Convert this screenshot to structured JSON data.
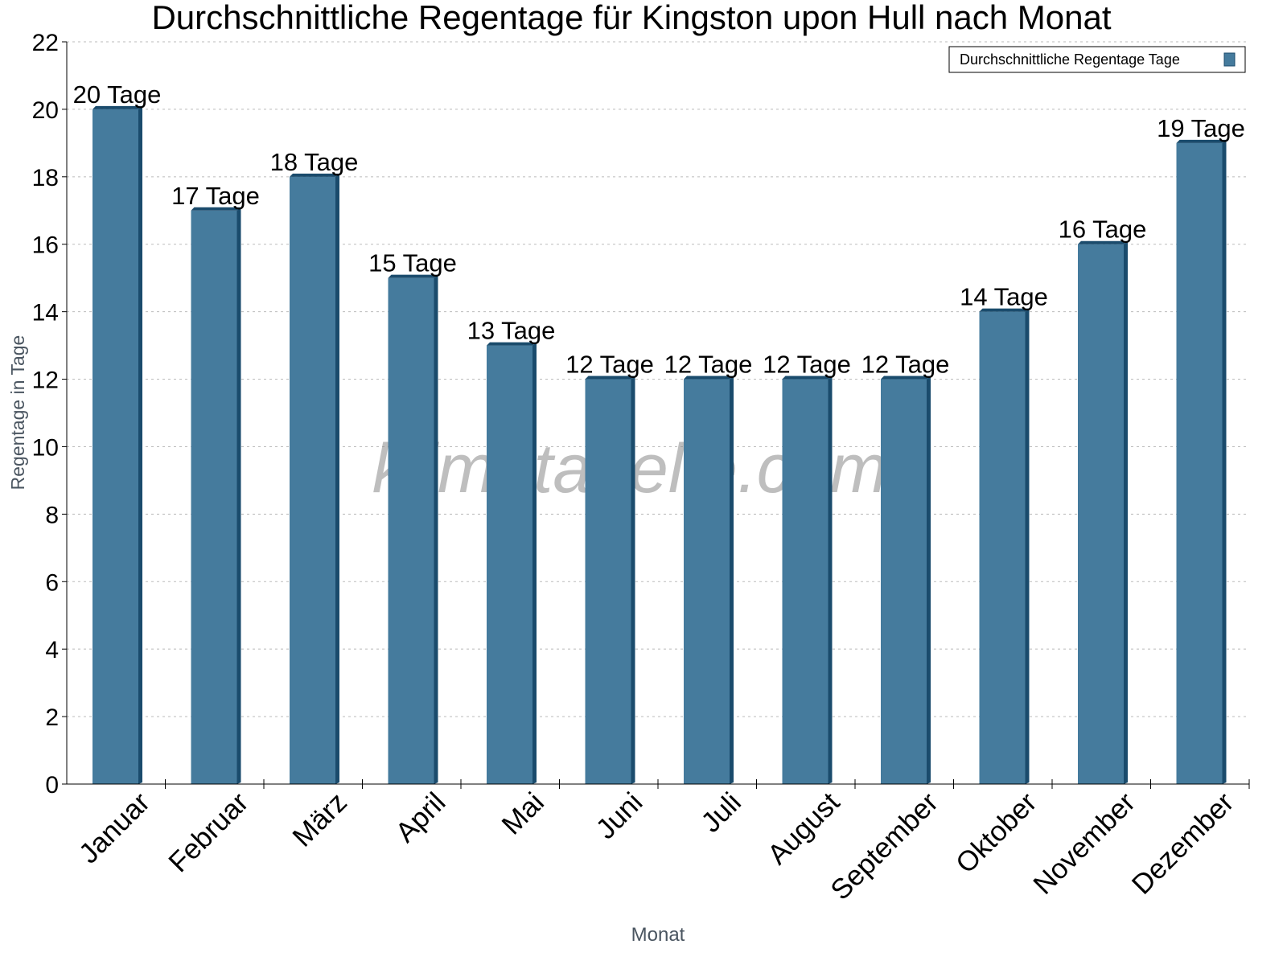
{
  "watermark": "klimatabelle.com",
  "colors": {
    "bar_face": "#457b9d",
    "bar_side": "#1a4b6c"
  },
  "chart_data": {
    "type": "bar",
    "title": "Durchschnittliche Regentage für Kingston upon Hull nach Monat",
    "xlabel": "Monat",
    "ylabel": "Regentage in Tage",
    "ylim": [
      0,
      22
    ],
    "yticks": [
      0,
      2,
      4,
      6,
      8,
      10,
      12,
      14,
      16,
      18,
      20,
      22
    ],
    "grid": true,
    "legend_position": "top-right",
    "categories": [
      "Januar",
      "Februar",
      "März",
      "April",
      "Mai",
      "Juni",
      "Juli",
      "August",
      "September",
      "Oktober",
      "November",
      "Dezember"
    ],
    "series": [
      {
        "name": "Durchschnittliche Regentage Tage",
        "values": [
          20,
          17,
          18,
          15,
          13,
          12,
          12,
          12,
          12,
          14,
          16,
          19
        ],
        "data_labels": [
          "20 Tage",
          "17 Tage",
          "18 Tage",
          "15 Tage",
          "13 Tage",
          "12 Tage",
          "12 Tage",
          "12 Tage",
          "12 Tage",
          "14 Tage",
          "16 Tage",
          "19 Tage"
        ]
      }
    ]
  }
}
